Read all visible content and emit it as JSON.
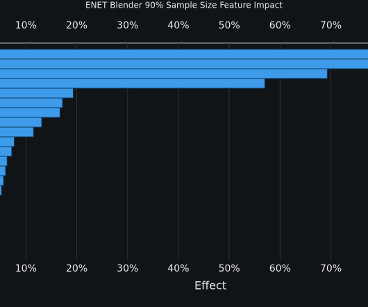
{
  "chart_data": {
    "type": "bar",
    "orientation": "horizontal",
    "title": "ENET Blender 90% Sample Size Feature Impact",
    "xlabel": "Effect",
    "values": [
      79,
      78,
      69.3,
      57.0,
      19.3,
      17.2,
      16.7,
      13.1,
      11.5,
      7.7,
      7.2,
      6.3,
      6.0,
      5.6,
      5.2
    ],
    "color": "#3d9be9",
    "xlim": [
      4.9,
      77.3
    ],
    "xticks": [
      {
        "value": 10,
        "label": "10%"
      },
      {
        "value": 20,
        "label": "20%"
      },
      {
        "value": 30,
        "label": "30%"
      },
      {
        "value": 40,
        "label": "40%"
      },
      {
        "value": 50,
        "label": "50%"
      },
      {
        "value": 60,
        "label": "60%"
      },
      {
        "value": 70,
        "label": "70%"
      }
    ],
    "grid": true
  }
}
